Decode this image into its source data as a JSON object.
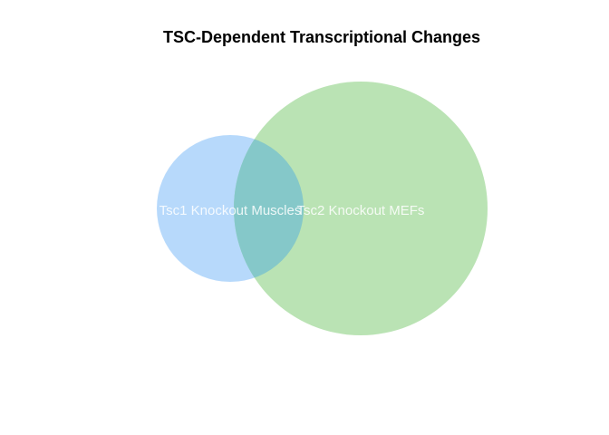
{
  "title": "TSC-Dependent Transcriptional Changes",
  "sets": [
    {
      "name": "Tsc1 Knockout Muscles",
      "color": "#9fccfa"
    },
    {
      "name": "Tsc2 Knockout MEFs",
      "color": "#a3d99b"
    }
  ],
  "overlap_color": "#85c8c9"
}
